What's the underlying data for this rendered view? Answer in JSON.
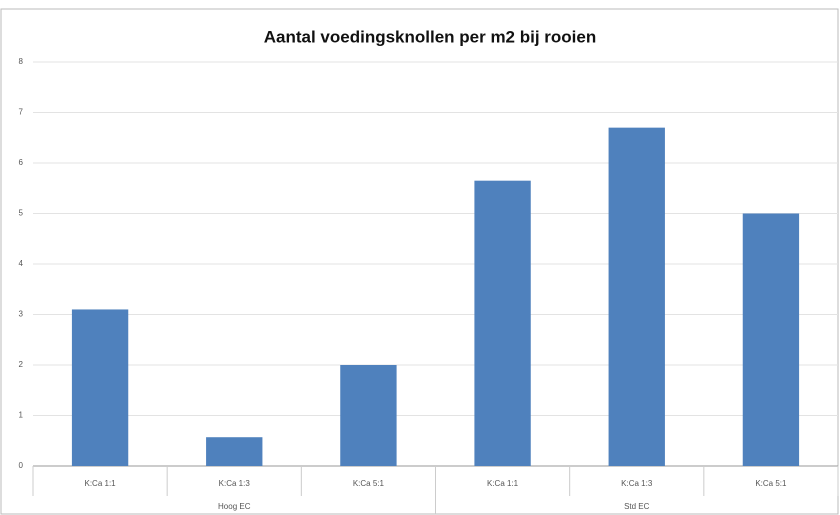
{
  "chart_data": {
    "type": "bar",
    "title": "Aantal voedingsknollen per m2 bij rooien",
    "categories": [
      "K:Ca 1:1",
      "K:Ca 1:3",
      "K:Ca 5:1",
      "K:Ca 1:1",
      "K:Ca 1:3",
      "K:Ca 5:1"
    ],
    "groups": [
      "Hoog EC",
      "Std EC"
    ],
    "values": [
      3.1,
      0.57,
      2.0,
      5.65,
      6.7,
      5.0
    ],
    "color": "#4f81bd",
    "ylim": [
      0,
      8
    ],
    "yticks": [
      0,
      1,
      2,
      3,
      4,
      5,
      6,
      7,
      8
    ],
    "grid": true
  }
}
